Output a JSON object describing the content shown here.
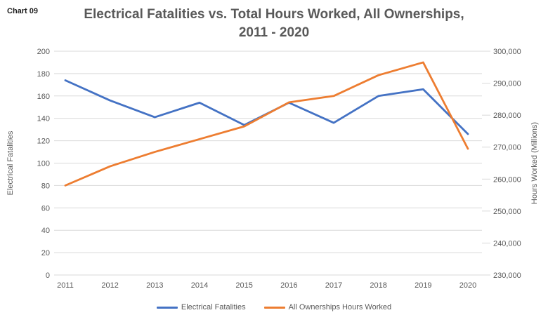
{
  "chart_label": "Chart 09",
  "title": {
    "line1": "Electrical Fatalities vs. Total Hours Worked, All Ownerships,",
    "line2": "2011 - 2020"
  },
  "chart_data": {
    "type": "line",
    "title": "Electrical Fatalities vs. Total Hours Worked, All Ownerships, 2011 - 2020",
    "categories": [
      "2011",
      "2012",
      "2013",
      "2014",
      "2015",
      "2016",
      "2017",
      "2018",
      "2019",
      "2020"
    ],
    "series": [
      {
        "name": "Electrical Fatalities",
        "axis": "left",
        "color": "#4472C4",
        "values": [
          174,
          156,
          141,
          154,
          134,
          154,
          136,
          160,
          166,
          126
        ]
      },
      {
        "name": "All Ownerships Hours Worked",
        "axis": "right",
        "color": "#ED7D31",
        "values": [
          258000,
          264000,
          268500,
          272500,
          276500,
          284000,
          286000,
          292500,
          296500,
          269500
        ]
      }
    ],
    "axes": {
      "left": {
        "label": "Electrical Fatalities",
        "min": 0,
        "max": 200,
        "step": 20
      },
      "right": {
        "label": "Hours Worked (Millions)",
        "min": 230000,
        "max": 300000,
        "step": 10000,
        "format": "thousands"
      }
    },
    "legend": {
      "position": "bottom"
    },
    "grid": true,
    "colors": {
      "grid": "#D9D9D9",
      "axis_text": "#595959",
      "title_text": "#595959",
      "label_text": "#1f1f1f"
    }
  }
}
